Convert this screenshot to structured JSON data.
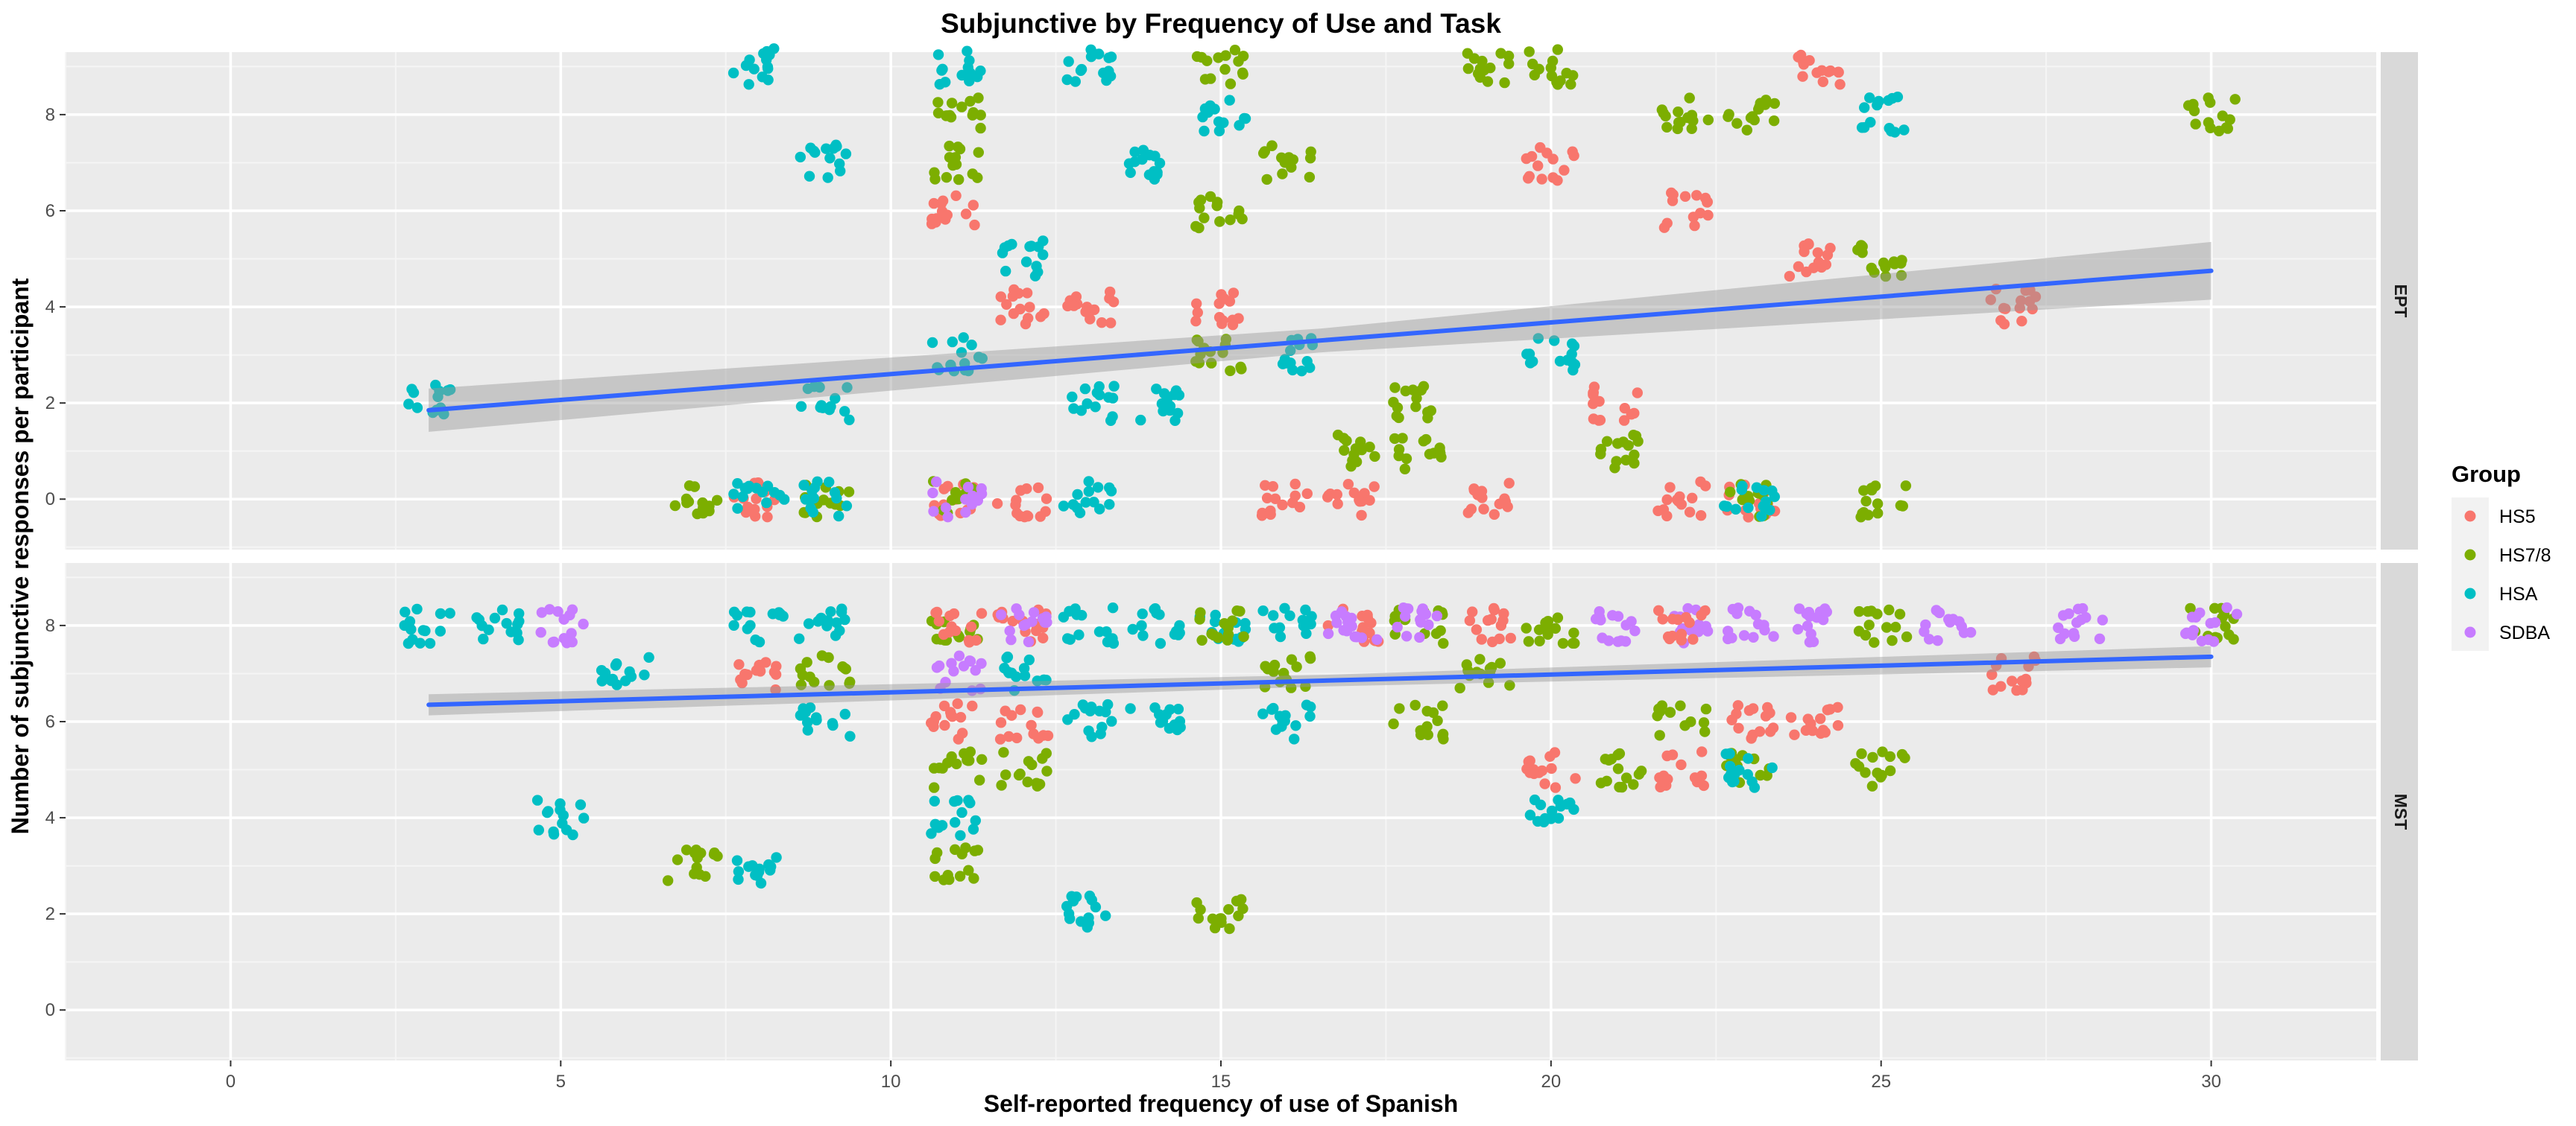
{
  "chart_data": {
    "type": "scatter",
    "title": "Subjunctive by Frequency of Use and Task",
    "xlabel": "Self-reported frequency of use of Spanish",
    "ylabel": "Number of subjunctive responses per participant",
    "xlim": [
      -2.5,
      32.5
    ],
    "ylim": [
      -1.05,
      9.3
    ],
    "x_ticks": [
      0,
      5,
      10,
      15,
      20,
      25,
      30
    ],
    "y_ticks": [
      0,
      2,
      4,
      6,
      8
    ],
    "legend": {
      "title": "Group",
      "position": "right",
      "entries": [
        {
          "name": "HS5",
          "color": "#F8766D"
        },
        {
          "name": "HS7/8",
          "color": "#7CAE00"
        },
        {
          "name": "HSA",
          "color": "#00BFC4"
        },
        {
          "name": "SDBA",
          "color": "#C77CFF"
        }
      ]
    },
    "panels": [
      {
        "label": "EPT",
        "trend_line": {
          "color": "#3366FF",
          "from": [
            3,
            1.85
          ],
          "to": [
            30,
            4.75
          ],
          "se_start": 0.45,
          "se_end": 0.6
        },
        "clusters": [
          {
            "group": "HSA",
            "x": 3,
            "y": 2
          },
          {
            "group": "HS7/8",
            "x": 7,
            "y": 0
          },
          {
            "group": "HS5",
            "x": 8,
            "y": 0
          },
          {
            "group": "HSA",
            "x": 8,
            "y": 0
          },
          {
            "group": "HSA",
            "x": 8,
            "y": 9
          },
          {
            "group": "HS7/8",
            "x": 9,
            "y": 0
          },
          {
            "group": "HSA",
            "x": 9,
            "y": 0
          },
          {
            "group": "HSA",
            "x": 9,
            "y": 2
          },
          {
            "group": "HSA",
            "x": 9,
            "y": 7
          },
          {
            "group": "HS5",
            "x": 11,
            "y": 0
          },
          {
            "group": "HS7/8",
            "x": 11,
            "y": 0
          },
          {
            "group": "SDBA",
            "x": 11,
            "y": 0
          },
          {
            "group": "HSA",
            "x": 11,
            "y": 3
          },
          {
            "group": "HS5",
            "x": 11,
            "y": 6
          },
          {
            "group": "HS7/8",
            "x": 11,
            "y": 7
          },
          {
            "group": "HS7/8",
            "x": 11,
            "y": 8
          },
          {
            "group": "HSA",
            "x": 11,
            "y": 9
          },
          {
            "group": "HS5",
            "x": 12,
            "y": 0
          },
          {
            "group": "HS5",
            "x": 12,
            "y": 4
          },
          {
            "group": "HSA",
            "x": 12,
            "y": 5
          },
          {
            "group": "HSA",
            "x": 13,
            "y": 0
          },
          {
            "group": "HSA",
            "x": 13,
            "y": 2
          },
          {
            "group": "HS5",
            "x": 13,
            "y": 4
          },
          {
            "group": "HSA",
            "x": 13,
            "y": 9
          },
          {
            "group": "HSA",
            "x": 14,
            "y": 2
          },
          {
            "group": "HSA",
            "x": 14,
            "y": 7
          },
          {
            "group": "HS7/8",
            "x": 15,
            "y": 3
          },
          {
            "group": "HS5",
            "x": 15,
            "y": 4
          },
          {
            "group": "HS7/8",
            "x": 15,
            "y": 6
          },
          {
            "group": "HSA",
            "x": 15,
            "y": 8
          },
          {
            "group": "HS7/8",
            "x": 15,
            "y": 9
          },
          {
            "group": "HS5",
            "x": 16,
            "y": 0
          },
          {
            "group": "HSA",
            "x": 16,
            "y": 3
          },
          {
            "group": "HS7/8",
            "x": 16,
            "y": 7
          },
          {
            "group": "HS5",
            "x": 17,
            "y": 0
          },
          {
            "group": "HS7/8",
            "x": 17,
            "y": 1
          },
          {
            "group": "HS7/8",
            "x": 18,
            "y": 1
          },
          {
            "group": "HS7/8",
            "x": 18,
            "y": 2
          },
          {
            "group": "HS5",
            "x": 19,
            "y": 0
          },
          {
            "group": "HS7/8",
            "x": 19,
            "y": 9
          },
          {
            "group": "HSA",
            "x": 20,
            "y": 3
          },
          {
            "group": "HS5",
            "x": 20,
            "y": 7
          },
          {
            "group": "HS7/8",
            "x": 20,
            "y": 9
          },
          {
            "group": "HS7/8",
            "x": 21,
            "y": 1
          },
          {
            "group": "HS5",
            "x": 21,
            "y": 2
          },
          {
            "group": "HS5",
            "x": 22,
            "y": 0
          },
          {
            "group": "HS5",
            "x": 22,
            "y": 6
          },
          {
            "group": "HS7/8",
            "x": 22,
            "y": 8
          },
          {
            "group": "HS5",
            "x": 23,
            "y": 0
          },
          {
            "group": "HS7/8",
            "x": 23,
            "y": 0
          },
          {
            "group": "HSA",
            "x": 23,
            "y": 0
          },
          {
            "group": "HS7/8",
            "x": 23,
            "y": 8
          },
          {
            "group": "HS5",
            "x": 24,
            "y": 5
          },
          {
            "group": "HS5",
            "x": 24,
            "y": 9
          },
          {
            "group": "HS7/8",
            "x": 25,
            "y": 0
          },
          {
            "group": "HS7/8",
            "x": 25,
            "y": 5
          },
          {
            "group": "HSA",
            "x": 25,
            "y": 8
          },
          {
            "group": "HS5",
            "x": 27,
            "y": 4
          },
          {
            "group": "HS7/8",
            "x": 30,
            "y": 8
          }
        ]
      },
      {
        "label": "MST",
        "trend_line": {
          "color": "#3366FF",
          "from": [
            3,
            6.35
          ],
          "to": [
            30,
            7.35
          ],
          "se_start": 0.22,
          "se_end": 0.22
        },
        "clusters": [
          {
            "group": "HSA",
            "x": 3,
            "y": 8
          },
          {
            "group": "HSA",
            "x": 4,
            "y": 8
          },
          {
            "group": "SDBA",
            "x": 5,
            "y": 8
          },
          {
            "group": "HSA",
            "x": 5,
            "y": 4
          },
          {
            "group": "HSA",
            "x": 6,
            "y": 7
          },
          {
            "group": "HS7/8",
            "x": 7,
            "y": 3
          },
          {
            "group": "HS5",
            "x": 8,
            "y": 7
          },
          {
            "group": "HSA",
            "x": 8,
            "y": 8
          },
          {
            "group": "HSA",
            "x": 8,
            "y": 3
          },
          {
            "group": "HS7/8",
            "x": 9,
            "y": 7
          },
          {
            "group": "HSA",
            "x": 9,
            "y": 6
          },
          {
            "group": "HSA",
            "x": 9,
            "y": 8
          },
          {
            "group": "HS7/8",
            "x": 11,
            "y": 8
          },
          {
            "group": "HS5",
            "x": 11,
            "y": 8
          },
          {
            "group": "SDBA",
            "x": 11,
            "y": 7
          },
          {
            "group": "HS5",
            "x": 11,
            "y": 6
          },
          {
            "group": "HS7/8",
            "x": 11,
            "y": 5
          },
          {
            "group": "HSA",
            "x": 11,
            "y": 4
          },
          {
            "group": "HS7/8",
            "x": 11,
            "y": 3
          },
          {
            "group": "HS5",
            "x": 12,
            "y": 8
          },
          {
            "group": "HSA",
            "x": 12,
            "y": 7
          },
          {
            "group": "HS5",
            "x": 12,
            "y": 6
          },
          {
            "group": "HS7/8",
            "x": 12,
            "y": 5
          },
          {
            "group": "SDBA",
            "x": 12,
            "y": 8
          },
          {
            "group": "HSA",
            "x": 13,
            "y": 8
          },
          {
            "group": "HSA",
            "x": 13,
            "y": 6
          },
          {
            "group": "HSA",
            "x": 13,
            "y": 2
          },
          {
            "group": "HSA",
            "x": 14,
            "y": 8
          },
          {
            "group": "HSA",
            "x": 14,
            "y": 6
          },
          {
            "group": "HSA",
            "x": 15,
            "y": 8
          },
          {
            "group": "HS7/8",
            "x": 15,
            "y": 8
          },
          {
            "group": "HS7/8",
            "x": 15,
            "y": 2
          },
          {
            "group": "HSA",
            "x": 16,
            "y": 8
          },
          {
            "group": "HS7/8",
            "x": 16,
            "y": 7
          },
          {
            "group": "HSA",
            "x": 16,
            "y": 6
          },
          {
            "group": "HS5",
            "x": 17,
            "y": 8
          },
          {
            "group": "SDBA",
            "x": 17,
            "y": 8
          },
          {
            "group": "HS7/8",
            "x": 18,
            "y": 8
          },
          {
            "group": "HS7/8",
            "x": 18,
            "y": 6
          },
          {
            "group": "SDBA",
            "x": 18,
            "y": 8
          },
          {
            "group": "HS5",
            "x": 19,
            "y": 8
          },
          {
            "group": "HS7/8",
            "x": 19,
            "y": 7
          },
          {
            "group": "HS7/8",
            "x": 20,
            "y": 8
          },
          {
            "group": "HS5",
            "x": 20,
            "y": 5
          },
          {
            "group": "HSA",
            "x": 20,
            "y": 4
          },
          {
            "group": "SDBA",
            "x": 21,
            "y": 8
          },
          {
            "group": "HS7/8",
            "x": 21,
            "y": 5
          },
          {
            "group": "SDBA",
            "x": 22,
            "y": 8
          },
          {
            "group": "HS5",
            "x": 22,
            "y": 8
          },
          {
            "group": "HS7/8",
            "x": 22,
            "y": 6
          },
          {
            "group": "HS5",
            "x": 22,
            "y": 5
          },
          {
            "group": "SDBA",
            "x": 23,
            "y": 8
          },
          {
            "group": "HS5",
            "x": 23,
            "y": 6
          },
          {
            "group": "HS7/8",
            "x": 23,
            "y": 5
          },
          {
            "group": "HSA",
            "x": 23,
            "y": 5
          },
          {
            "group": "SDBA",
            "x": 24,
            "y": 8
          },
          {
            "group": "HS5",
            "x": 24,
            "y": 6
          },
          {
            "group": "HS7/8",
            "x": 25,
            "y": 8
          },
          {
            "group": "HS7/8",
            "x": 25,
            "y": 5
          },
          {
            "group": "SDBA",
            "x": 26,
            "y": 8
          },
          {
            "group": "HS5",
            "x": 27,
            "y": 7
          },
          {
            "group": "SDBA",
            "x": 28,
            "y": 8
          },
          {
            "group": "HS7/8",
            "x": 30,
            "y": 8
          },
          {
            "group": "SDBA",
            "x": 30,
            "y": 8
          }
        ]
      }
    ]
  }
}
